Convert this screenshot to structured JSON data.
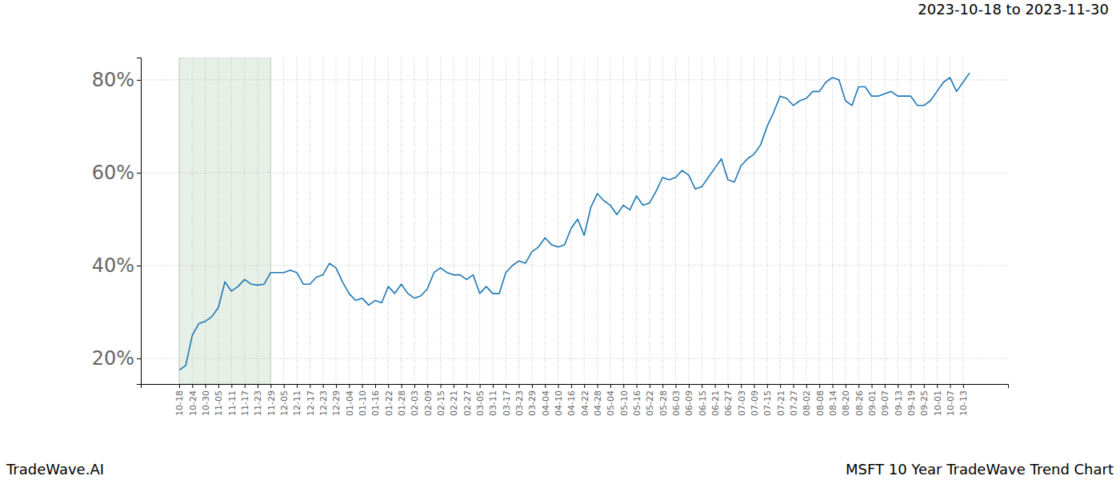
{
  "chart_data": {
    "type": "line",
    "title": "2023-10-18 to 2023-11-30",
    "annotations": [
      "TradeWave.AI",
      "MSFT 10 Year TradeWave Trend Chart"
    ],
    "categories": [
      "10-18",
      null,
      "10-24",
      null,
      "10-30",
      null,
      "11-05",
      null,
      "11-11",
      null,
      "11-17",
      null,
      "11-23",
      null,
      "11-29",
      null,
      "12-05",
      null,
      "12-11",
      null,
      "12-17",
      null,
      "12-23",
      null,
      "12-29",
      null,
      "01-04",
      null,
      "01-10",
      null,
      "01-16",
      null,
      "01-22",
      null,
      "01-28",
      null,
      "02-03",
      null,
      "02-09",
      null,
      "02-15",
      null,
      "02-21",
      null,
      "02-27",
      null,
      "03-05",
      null,
      "03-11",
      null,
      "03-17",
      null,
      "03-23",
      null,
      "03-29",
      null,
      "04-04",
      null,
      "04-10",
      null,
      "04-16",
      null,
      "04-22",
      null,
      "04-28",
      null,
      "05-04",
      null,
      "05-10",
      null,
      "05-16",
      null,
      "05-22",
      null,
      "05-28",
      null,
      "06-03",
      null,
      "06-09",
      null,
      "06-15",
      null,
      "06-21",
      null,
      "06-27",
      null,
      "07-03",
      null,
      "07-09",
      null,
      "07-15",
      null,
      "07-21",
      null,
      "07-27",
      null,
      "08-02",
      null,
      "08-08",
      null,
      "08-14",
      null,
      "08-20",
      null,
      "08-26",
      null,
      "09-01",
      null,
      "09-07",
      null,
      "09-13",
      null,
      "09-19",
      null,
      "09-25",
      null,
      "10-01",
      null,
      "10-07",
      null,
      "10-13",
      null
    ],
    "values": [
      17.5,
      18.5,
      25,
      27.5,
      28,
      29,
      31,
      36.5,
      34.5,
      35.5,
      37,
      36,
      35.8,
      36,
      38.5,
      38.5,
      38.5,
      39,
      38.5,
      36,
      36,
      37.5,
      38,
      40.5,
      39.5,
      36.5,
      34,
      32.5,
      33,
      31.5,
      32.5,
      32,
      35.5,
      34,
      36,
      34,
      33,
      33.5,
      35,
      38.5,
      39.5,
      38.5,
      38,
      38,
      37,
      38,
      34,
      35.5,
      34,
      34,
      38.5,
      40,
      41,
      40.5,
      43,
      44,
      46,
      44.5,
      44,
      44.5,
      48,
      50,
      46.5,
      52.5,
      55.5,
      54,
      53,
      51,
      53,
      52,
      55,
      53,
      53.5,
      56,
      59,
      58.5,
      59,
      60.5,
      59.5,
      56.5,
      57,
      59,
      61,
      63,
      58.5,
      58,
      61.5,
      63,
      64,
      66,
      70,
      73,
      76.5,
      76,
      74.5,
      75.5,
      76,
      77.5,
      77.5,
      79.5,
      80.5,
      80,
      75.5,
      74.5,
      78.5,
      78.5,
      76.5,
      76.5,
      77,
      77.5,
      76.5,
      76.5,
      76.5,
      74.5,
      74.5,
      75.5,
      77.5,
      79.5,
      80.5,
      77.5,
      79.5,
      81.5
    ],
    "color": "#1f77b4",
    "shaded_range": {
      "from": "10-18",
      "to": "11-29"
    },
    "ylim": [
      14.5,
      84.8
    ],
    "yticks": [
      {
        "value": 20,
        "label": "20%"
      },
      {
        "value": 40,
        "label": "40%"
      },
      {
        "value": 60,
        "label": "60%"
      },
      {
        "value": 80,
        "label": "80%"
      }
    ],
    "grid": true
  }
}
